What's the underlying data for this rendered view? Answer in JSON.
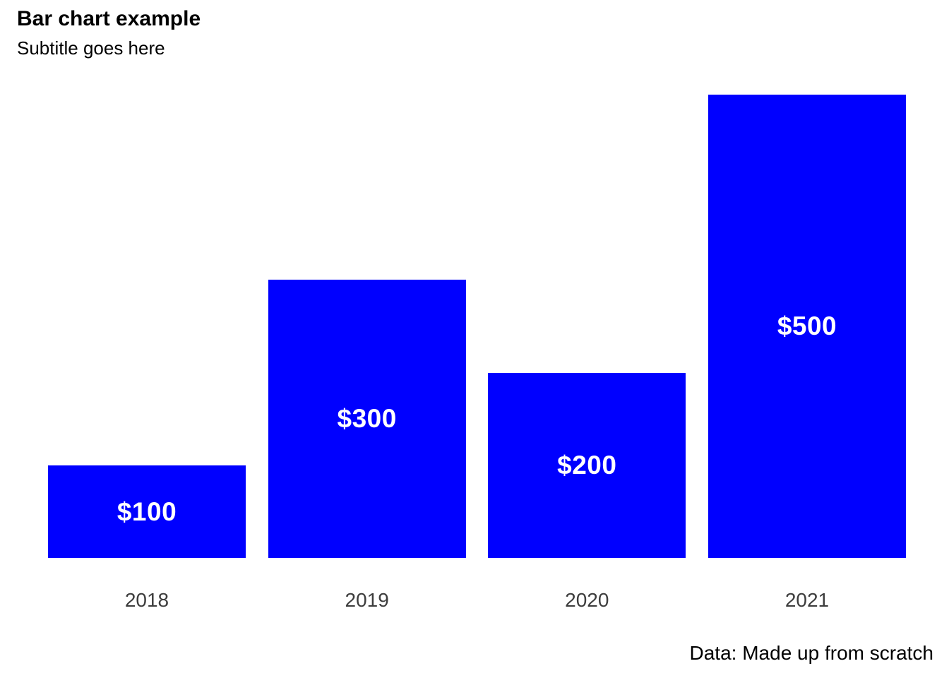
{
  "chart_data": {
    "type": "bar",
    "title": "Bar chart example",
    "subtitle": "Subtitle goes here",
    "caption": "Data: Made up from scratch",
    "categories": [
      "2018",
      "2019",
      "2020",
      "2021"
    ],
    "values": [
      100,
      300,
      200,
      500
    ],
    "bar_labels": [
      "$100",
      "$300",
      "$200",
      "$500"
    ],
    "ylim": [
      0,
      500
    ],
    "grid": false,
    "legend": "none",
    "colors": {
      "bar_fill": "#0000ff",
      "bar_label_text": "#ffffff",
      "axis_tick_text": "#3d3d3d",
      "title_text": "#000000",
      "caption_text": "#000000"
    }
  }
}
